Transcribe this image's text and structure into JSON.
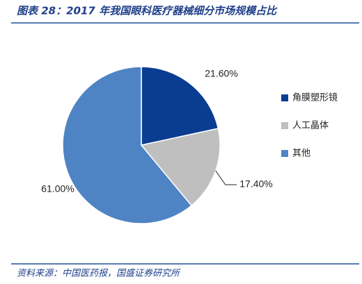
{
  "chart_data": {
    "type": "pie",
    "title": "图表 28：2017 年我国眼科医疗器械细分市场规模占比",
    "source": "资料来源：中国医药报，国盛证券研究所",
    "categories": [
      "角膜塑形镜",
      "人工晶体",
      "其他"
    ],
    "values": [
      21.6,
      17.4,
      61.0
    ],
    "value_labels": [
      "21.60%",
      "17.40%",
      "61.00%"
    ],
    "colors": [
      "#0a3d91",
      "#bfbfbf",
      "#4f84c4"
    ],
    "legend": "right"
  }
}
